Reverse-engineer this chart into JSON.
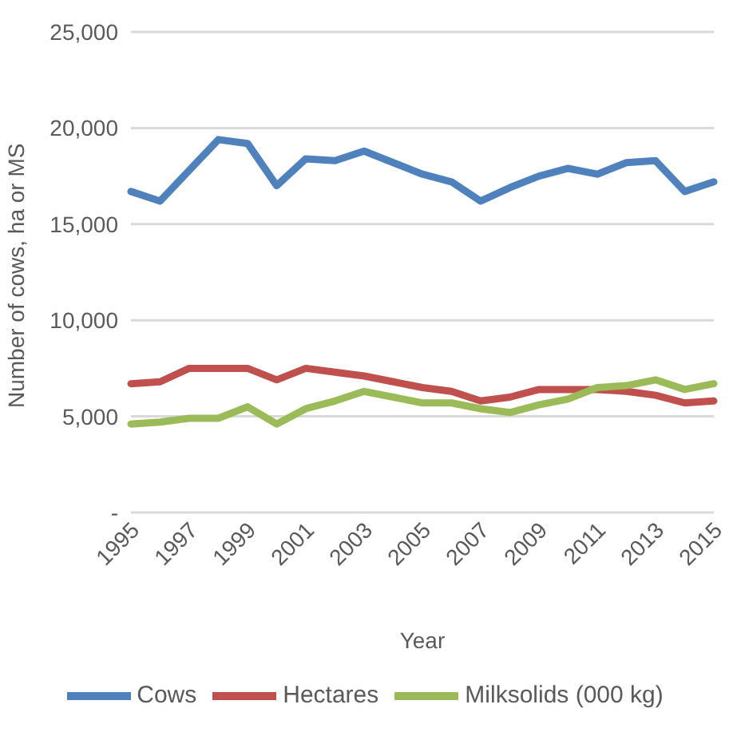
{
  "chart_data": {
    "type": "line",
    "xlabel": "Year",
    "ylabel": "Number of cows, ha or MS",
    "categories": [
      "1995",
      null,
      "1997",
      null,
      "1999",
      null,
      "2001",
      null,
      "2003",
      null,
      "2005",
      null,
      "2007",
      null,
      "2009",
      null,
      "2011",
      null,
      "2013",
      null,
      "2015"
    ],
    "series": [
      {
        "name": "Cows",
        "color": "#4f81bd",
        "values": [
          16700,
          16200,
          17800,
          19400,
          19200,
          17000,
          18400,
          18300,
          18800,
          18200,
          17600,
          17200,
          16200,
          16900,
          17500,
          17900,
          17600,
          18200,
          18300,
          16700,
          17200
        ]
      },
      {
        "name": "Hectares",
        "color": "#c0504d",
        "values": [
          6700,
          6800,
          7500,
          7500,
          7500,
          6900,
          7500,
          7300,
          7100,
          6800,
          6500,
          6300,
          5800,
          6000,
          6400,
          6400,
          6400,
          6300,
          6100,
          5700,
          5800
        ]
      },
      {
        "name": "Milksolids (000 kg)",
        "color": "#9bbb59",
        "values": [
          4600,
          4700,
          4900,
          4900,
          5500,
          4600,
          5400,
          5800,
          6300,
          6000,
          5700,
          5700,
          5400,
          5200,
          5600,
          5900,
          6500,
          6600,
          6900,
          6400,
          6700
        ]
      }
    ],
    "ylim": [
      0,
      25000
    ],
    "yticks": [
      {
        "value": 0,
        "label": "-"
      },
      {
        "value": 5000,
        "label": "5,000"
      },
      {
        "value": 10000,
        "label": "10,000"
      },
      {
        "value": 15000,
        "label": "15,000"
      },
      {
        "value": 20000,
        "label": "20,000"
      },
      {
        "value": 25000,
        "label": "25,000"
      }
    ],
    "grid": "y",
    "legend": "bottom",
    "marker": "none",
    "line_style": "solid"
  }
}
